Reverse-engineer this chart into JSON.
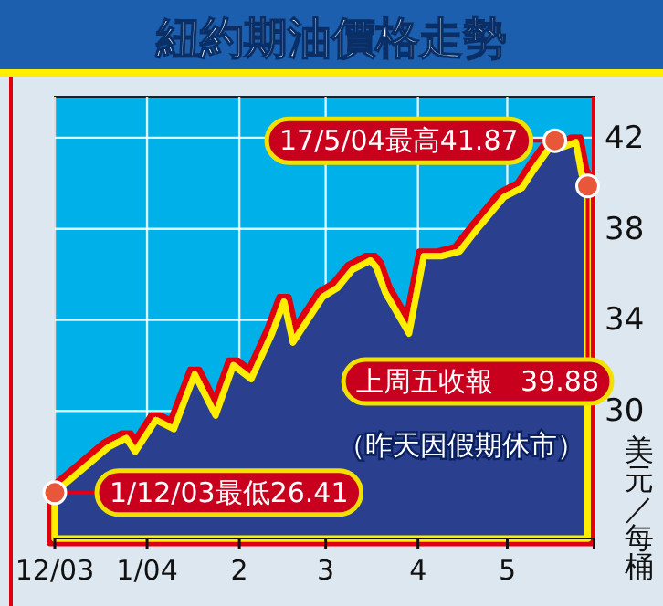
{
  "chart_data": {
    "type": "area",
    "title": "紐約期油價格走勢",
    "ylabel": "美元／每桶",
    "x": [
      "2003-12-01",
      "2003-12-10",
      "2003-12-19",
      "2003-12-25",
      "2003-12-28",
      "2004-01-04",
      "2004-01-10",
      "2004-01-17",
      "2004-01-24",
      "2004-01-30",
      "2004-02-05",
      "2004-02-12",
      "2004-02-16",
      "2004-02-19",
      "2004-02-29",
      "2004-03-05",
      "2004-03-10",
      "2004-03-16",
      "2004-03-18",
      "2004-03-21",
      "2004-03-29",
      "2004-04-03",
      "2004-04-09",
      "2004-04-15",
      "2004-04-21",
      "2004-04-30",
      "2004-05-06",
      "2004-05-10",
      "2004-05-17",
      "2004-05-20",
      "2004-05-24",
      "2004-05-26",
      "2004-05-28"
    ],
    "series": [
      {
        "color": "#2b3f8f",
        "values": [
          26.41,
          27.4,
          28.4,
          28.8,
          28.2,
          29.6,
          29.2,
          31.6,
          29.8,
          32,
          31.4,
          33.4,
          34.8,
          33,
          35,
          35.4,
          36.2,
          36.6,
          36.3,
          35.2,
          33.4,
          36.8,
          36.8,
          37,
          38,
          39.4,
          39.8,
          40.6,
          41.87,
          41.6,
          41.8,
          40.4,
          39.88
        ]
      }
    ],
    "xlim": [
      "2003-12-01",
      "2004-05-30"
    ],
    "xticks": [
      {
        "value": "2003-12-01",
        "label": "12/03"
      },
      {
        "value": "2004-01-01",
        "label": "1/04"
      },
      {
        "value": "2004-02-01",
        "label": "2"
      },
      {
        "value": "2004-03-01",
        "label": "3"
      },
      {
        "value": "2004-04-01",
        "label": "4"
      },
      {
        "value": "2004-05-01",
        "label": "5"
      }
    ],
    "ylim": [
      24.4,
      43.8
    ],
    "yticks": [
      {
        "value": 26,
        "label": null
      },
      30,
      34,
      38,
      42
    ],
    "grid": true,
    "annotations": [
      {
        "text": "17/5/04最高41.87",
        "x": "2004-05-17",
        "y": 41.87
      },
      {
        "text": "上周五收報　39.88",
        "x": "2004-05-28",
        "y": 39.88
      },
      "（昨天因假期休市）",
      {
        "text": "1/12/03最低26.41",
        "x": "2003-12-01",
        "y": 26.41
      }
    ]
  }
}
